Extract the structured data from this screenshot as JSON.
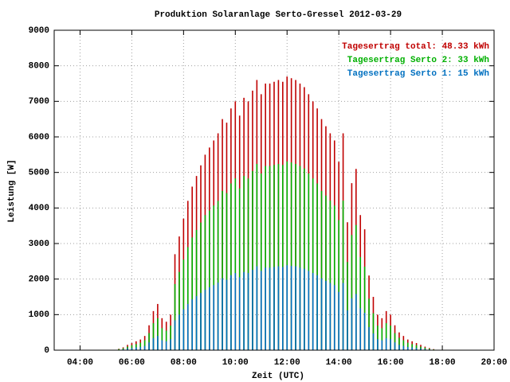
{
  "chart_data": {
    "type": "impulse",
    "title": "Produktion Solaranlage Serto-Gressel 2012-03-29",
    "x_label": "Zeit (UTC)",
    "y_label": "Leistung [W]",
    "grid": true,
    "legend": "top-right",
    "xlim": [
      "03:00",
      "20:00"
    ],
    "xticks": [
      "04:00",
      "06:00",
      "08:00",
      "10:00",
      "12:00",
      "14:00",
      "16:00",
      "18:00",
      "20:00"
    ],
    "ylim": [
      0,
      9000
    ],
    "yticks": [
      0,
      1000,
      2000,
      3000,
      4000,
      5000,
      6000,
      7000,
      8000,
      9000
    ],
    "x": [
      "05:30",
      "05:40",
      "05:50",
      "06:00",
      "06:10",
      "06:20",
      "06:30",
      "06:40",
      "06:50",
      "07:00",
      "07:10",
      "07:20",
      "07:30",
      "07:40",
      "07:50",
      "08:00",
      "08:10",
      "08:20",
      "08:30",
      "08:40",
      "08:50",
      "09:00",
      "09:10",
      "09:20",
      "09:30",
      "09:40",
      "09:50",
      "10:00",
      "10:10",
      "10:20",
      "10:30",
      "10:40",
      "10:50",
      "11:00",
      "11:10",
      "11:20",
      "11:30",
      "11:40",
      "11:50",
      "12:00",
      "12:10",
      "12:20",
      "12:30",
      "12:40",
      "12:50",
      "13:00",
      "13:10",
      "13:20",
      "13:30",
      "13:40",
      "13:50",
      "14:00",
      "14:10",
      "14:20",
      "14:30",
      "14:40",
      "14:50",
      "15:00",
      "15:10",
      "15:20",
      "15:30",
      "15:40",
      "15:50",
      "16:00",
      "16:10",
      "16:20",
      "16:30",
      "16:40",
      "16:50",
      "17:00",
      "17:10",
      "17:20",
      "17:30",
      "17:40",
      "17:50"
    ],
    "series": [
      {
        "name": "Tagesertrag total: 48.33 kWh",
        "color": "#c00000",
        "values": [
          40,
          80,
          150,
          200,
          250,
          300,
          400,
          700,
          1100,
          1300,
          900,
          800,
          1000,
          2700,
          3200,
          3700,
          4200,
          4600,
          4900,
          5200,
          5500,
          5700,
          5900,
          6100,
          6500,
          6400,
          6800,
          7000,
          6600,
          7100,
          7000,
          7300,
          7600,
          7200,
          7500,
          7500,
          7550,
          7600,
          7550,
          7700,
          7650,
          7600,
          7500,
          7400,
          7200,
          7000,
          6800,
          6500,
          6300,
          6100,
          5900,
          5300,
          6100,
          3600,
          4700,
          5100,
          3800,
          3400,
          2100,
          1500,
          1000,
          900,
          1100,
          1000,
          700,
          500,
          400,
          300,
          250,
          200,
          150,
          100,
          60,
          30,
          10
        ]
      },
      {
        "name": "Tagesertrag Serto 2: 33 kWh",
        "color": "#00b000",
        "values": [
          30,
          55,
          100,
          140,
          170,
          210,
          280,
          480,
          760,
          900,
          620,
          550,
          690,
          1860,
          2200,
          2550,
          2900,
          3170,
          3380,
          3590,
          3800,
          3930,
          4070,
          4200,
          4480,
          4420,
          4690,
          4830,
          4550,
          4900,
          4830,
          5040,
          5240,
          4970,
          5180,
          5180,
          5210,
          5240,
          5210,
          5310,
          5280,
          5240,
          5180,
          5110,
          4970,
          4830,
          4690,
          4480,
          4350,
          4210,
          4070,
          3660,
          4210,
          2480,
          3240,
          3520,
          2620,
          2350,
          1450,
          1040,
          690,
          620,
          760,
          690,
          480,
          350,
          280,
          210,
          170,
          140,
          100,
          70,
          40,
          20,
          7
        ]
      },
      {
        "name": "Tagesertrag Serto 1: 15 kWh",
        "color": "#0070c0",
        "values": [
          10,
          25,
          50,
          60,
          80,
          90,
          120,
          220,
          340,
          400,
          280,
          250,
          310,
          840,
          1000,
          1150,
          1300,
          1430,
          1520,
          1610,
          1700,
          1770,
          1830,
          1900,
          2020,
          1980,
          2110,
          2170,
          2050,
          2200,
          2170,
          2260,
          2360,
          2230,
          2320,
          2320,
          2340,
          2360,
          2340,
          2390,
          2370,
          2360,
          2320,
          2290,
          2230,
          2170,
          2110,
          2020,
          1950,
          1890,
          1830,
          1640,
          1890,
          1120,
          1460,
          1580,
          1180,
          1050,
          650,
          470,
          310,
          280,
          340,
          310,
          220,
          150,
          120,
          90,
          80,
          60,
          50,
          30,
          20,
          10,
          3
        ]
      }
    ]
  }
}
